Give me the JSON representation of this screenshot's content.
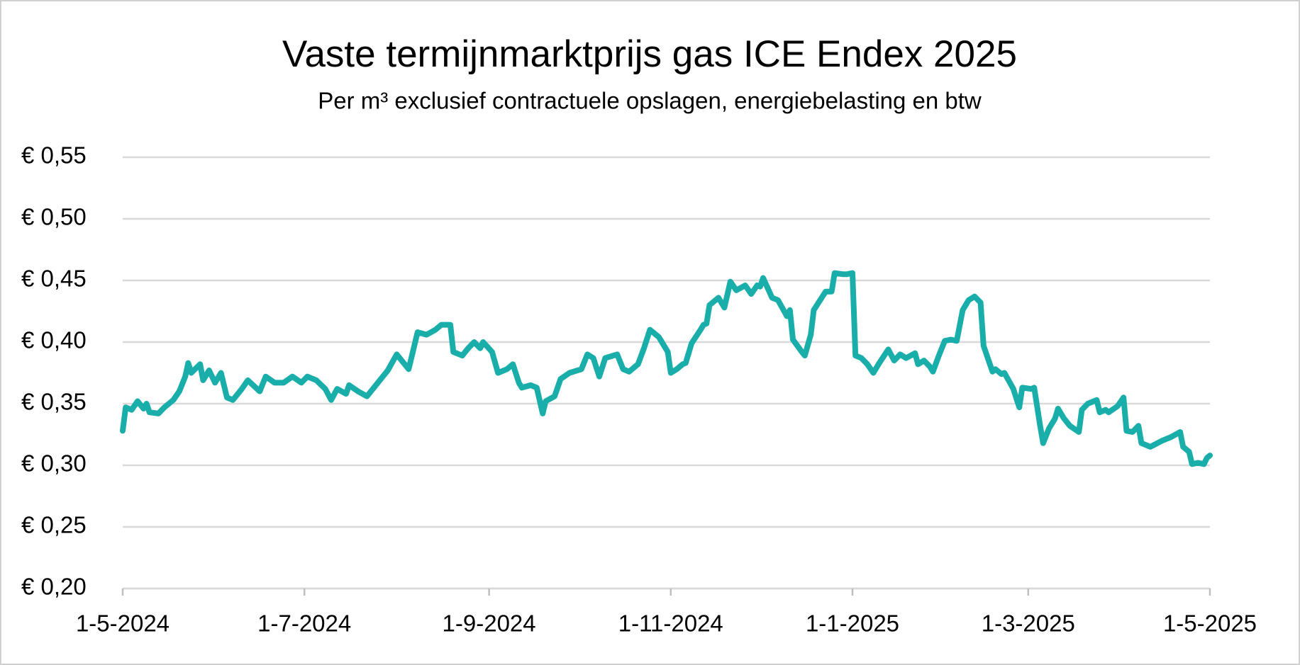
{
  "chart_data": {
    "type": "line",
    "title": "Vaste termijnmarktprijs gas ICE Endex 2025",
    "subtitle": "Per m³ exclusief contractuele opslagen, energiebelasting en btw",
    "color": "#1aaeaa",
    "grid": true,
    "ylim": [
      0.2,
      0.55
    ],
    "yticks": [
      {
        "value": 0.2,
        "label": "€ 0,20"
      },
      {
        "value": 0.25,
        "label": "€ 0,25"
      },
      {
        "value": 0.3,
        "label": "€ 0,30"
      },
      {
        "value": 0.35,
        "label": "€ 0,35"
      },
      {
        "value": 0.4,
        "label": "€ 0,40"
      },
      {
        "value": 0.45,
        "label": "€ 0,45"
      },
      {
        "value": 0.5,
        "label": "€ 0,50"
      },
      {
        "value": 0.55,
        "label": "€ 0,55"
      }
    ],
    "xlim": [
      "2024-05-01",
      "2025-05-01"
    ],
    "xticks": [
      {
        "value": "2024-05-01",
        "label": "1-5-2024"
      },
      {
        "value": "2024-07-01",
        "label": "1-7-2024"
      },
      {
        "value": "2024-09-01",
        "label": "1-9-2024"
      },
      {
        "value": "2024-11-01",
        "label": "1-11-2024"
      },
      {
        "value": "2025-01-01",
        "label": "1-1-2025"
      },
      {
        "value": "2025-03-01",
        "label": "1-3-2025"
      },
      {
        "value": "2025-05-01",
        "label": "1-5-2025"
      }
    ],
    "x": [
      "2024-05-01",
      "2024-05-02",
      "2024-05-04",
      "2024-05-06",
      "2024-05-08",
      "2024-05-09",
      "2024-05-10",
      "2024-05-13",
      "2024-05-15",
      "2024-05-18",
      "2024-05-20",
      "2024-05-22",
      "2024-05-23",
      "2024-05-24",
      "2024-05-27",
      "2024-05-28",
      "2024-05-30",
      "2024-06-01",
      "2024-06-03",
      "2024-06-05",
      "2024-06-07",
      "2024-06-10",
      "2024-06-12",
      "2024-06-16",
      "2024-06-18",
      "2024-06-21",
      "2024-06-24",
      "2024-06-27",
      "2024-06-30",
      "2024-07-02",
      "2024-07-05",
      "2024-07-08",
      "2024-07-10",
      "2024-07-12",
      "2024-07-15",
      "2024-07-16",
      "2024-07-19",
      "2024-07-22",
      "2024-07-25",
      "2024-07-29",
      "2024-08-01",
      "2024-08-05",
      "2024-08-08",
      "2024-08-11",
      "2024-08-14",
      "2024-08-16",
      "2024-08-19",
      "2024-08-20",
      "2024-08-23",
      "2024-08-25",
      "2024-08-27",
      "2024-08-29",
      "2024-08-30",
      "2024-09-02",
      "2024-09-04",
      "2024-09-07",
      "2024-09-09",
      "2024-09-11",
      "2024-09-12",
      "2024-09-15",
      "2024-09-17",
      "2024-09-19",
      "2024-09-20",
      "2024-09-23",
      "2024-09-25",
      "2024-09-28",
      "2024-10-02",
      "2024-10-04",
      "2024-10-06",
      "2024-10-08",
      "2024-10-10",
      "2024-10-14",
      "2024-10-16",
      "2024-10-18",
      "2024-10-21",
      "2024-10-23",
      "2024-10-25",
      "2024-10-28",
      "2024-10-31",
      "2024-11-01",
      "2024-11-03",
      "2024-11-05",
      "2024-11-06",
      "2024-11-08",
      "2024-11-11",
      "2024-11-12",
      "2024-11-13",
      "2024-11-14",
      "2024-11-17",
      "2024-11-19",
      "2024-11-21",
      "2024-11-23",
      "2024-11-26",
      "2024-11-28",
      "2024-11-30",
      "2024-12-01",
      "2024-12-02",
      "2024-12-05",
      "2024-12-07",
      "2024-12-10",
      "2024-12-11",
      "2024-12-12",
      "2024-12-15",
      "2024-12-16",
      "2024-12-18",
      "2024-12-19",
      "2024-12-23",
      "2024-12-25",
      "2024-12-26",
      "2024-12-29",
      "2024-12-30",
      "2025-01-01",
      "2025-01-02",
      "2025-01-04",
      "2025-01-06",
      "2025-01-08",
      "2025-01-10",
      "2025-01-13",
      "2025-01-15",
      "2025-01-17",
      "2025-01-19",
      "2025-01-22",
      "2025-01-23",
      "2025-01-25",
      "2025-01-27",
      "2025-01-28",
      "2025-01-30",
      "2025-02-01",
      "2025-02-03",
      "2025-02-05",
      "2025-02-07",
      "2025-02-09",
      "2025-02-11",
      "2025-02-13",
      "2025-02-14",
      "2025-02-17",
      "2025-02-18",
      "2025-02-20",
      "2025-02-21",
      "2025-02-24",
      "2025-02-26",
      "2025-02-27",
      "2025-03-02",
      "2025-03-03",
      "2025-03-05",
      "2025-03-06",
      "2025-03-08",
      "2025-03-10",
      "2025-03-11",
      "2025-03-13",
      "2025-03-15",
      "2025-03-18",
      "2025-03-19",
      "2025-03-21",
      "2025-03-24",
      "2025-03-25",
      "2025-03-27",
      "2025-03-28",
      "2025-03-31",
      "2025-04-02",
      "2025-04-03",
      "2025-04-05",
      "2025-04-07",
      "2025-04-08",
      "2025-04-11",
      "2025-04-15",
      "2025-04-18",
      "2025-04-21",
      "2025-04-22",
      "2025-04-24",
      "2025-04-25",
      "2025-04-27",
      "2025-04-29",
      "2025-04-30",
      "2025-05-01"
    ],
    "values": [
      0.328,
      0.347,
      0.345,
      0.352,
      0.346,
      0.35,
      0.343,
      0.342,
      0.347,
      0.353,
      0.36,
      0.372,
      0.383,
      0.375,
      0.382,
      0.369,
      0.377,
      0.367,
      0.375,
      0.355,
      0.353,
      0.362,
      0.369,
      0.36,
      0.372,
      0.367,
      0.367,
      0.372,
      0.367,
      0.372,
      0.369,
      0.362,
      0.353,
      0.362,
      0.358,
      0.365,
      0.36,
      0.356,
      0.365,
      0.377,
      0.39,
      0.378,
      0.408,
      0.406,
      0.41,
      0.414,
      0.414,
      0.392,
      0.389,
      0.395,
      0.4,
      0.395,
      0.4,
      0.392,
      0.375,
      0.378,
      0.382,
      0.367,
      0.363,
      0.365,
      0.363,
      0.342,
      0.352,
      0.356,
      0.37,
      0.375,
      0.378,
      0.39,
      0.387,
      0.372,
      0.387,
      0.39,
      0.378,
      0.376,
      0.382,
      0.395,
      0.41,
      0.404,
      0.392,
      0.375,
      0.378,
      0.382,
      0.383,
      0.399,
      0.41,
      0.414,
      0.415,
      0.43,
      0.436,
      0.428,
      0.449,
      0.442,
      0.446,
      0.439,
      0.446,
      0.445,
      0.452,
      0.436,
      0.434,
      0.421,
      0.426,
      0.402,
      0.392,
      0.389,
      0.406,
      0.426,
      0.441,
      0.441,
      0.456,
      0.455,
      0.455,
      0.456,
      0.389,
      0.387,
      0.382,
      0.375,
      0.383,
      0.394,
      0.385,
      0.39,
      0.387,
      0.391,
      0.382,
      0.385,
      0.38,
      0.376,
      0.389,
      0.401,
      0.402,
      0.401,
      0.426,
      0.434,
      0.437,
      0.432,
      0.397,
      0.376,
      0.378,
      0.374,
      0.375,
      0.362,
      0.347,
      0.363,
      0.362,
      0.363,
      0.332,
      0.318,
      0.33,
      0.338,
      0.346,
      0.338,
      0.332,
      0.327,
      0.345,
      0.35,
      0.353,
      0.343,
      0.345,
      0.343,
      0.348,
      0.355,
      0.328,
      0.327,
      0.332,
      0.318,
      0.315,
      0.32,
      0.323,
      0.327,
      0.315,
      0.311,
      0.301,
      0.302,
      0.301,
      0.306,
      0.308
    ]
  }
}
